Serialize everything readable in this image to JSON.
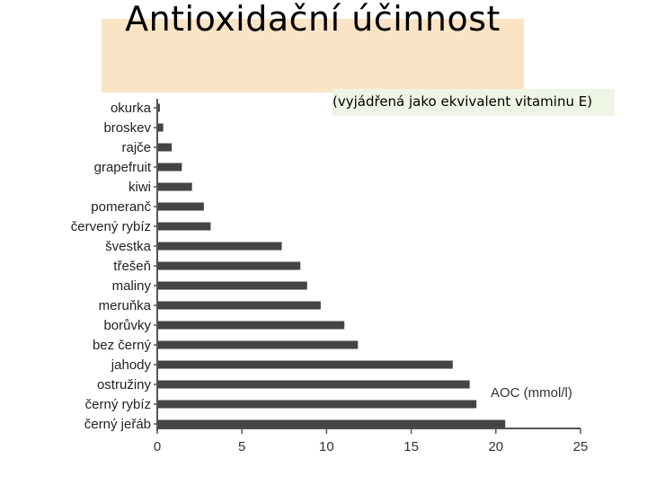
{
  "title": "Antioxidační účinnost",
  "subtitle": "(vyjádřená jako ekvivalent vitaminu E)",
  "colors": {
    "title_bg": "#fbe4c6",
    "subtitle_bg": "#eef5e4",
    "bar": "#444444"
  },
  "chart_data": {
    "type": "bar",
    "orientation": "horizontal",
    "categories": [
      "okurka",
      "broskev",
      "rajče",
      "grapefruit",
      "kiwi",
      "pomeranč",
      "červený rybíz",
      "švestka",
      "třešeň",
      "maliny",
      "meruňka",
      "borůvky",
      "bez černý",
      "jahody",
      "ostružiny",
      "černý rybíz",
      "černý jeřáb"
    ],
    "values": [
      0.1,
      0.3,
      0.8,
      1.4,
      2.0,
      2.7,
      3.1,
      7.3,
      8.4,
      8.8,
      9.6,
      11.0,
      11.8,
      17.4,
      18.4,
      18.8,
      20.5
    ],
    "unit_label": "AOC (mmol/l)",
    "xlim": [
      0,
      25
    ],
    "xticks": [
      0,
      5,
      10,
      15,
      20,
      25
    ],
    "grid": false
  }
}
